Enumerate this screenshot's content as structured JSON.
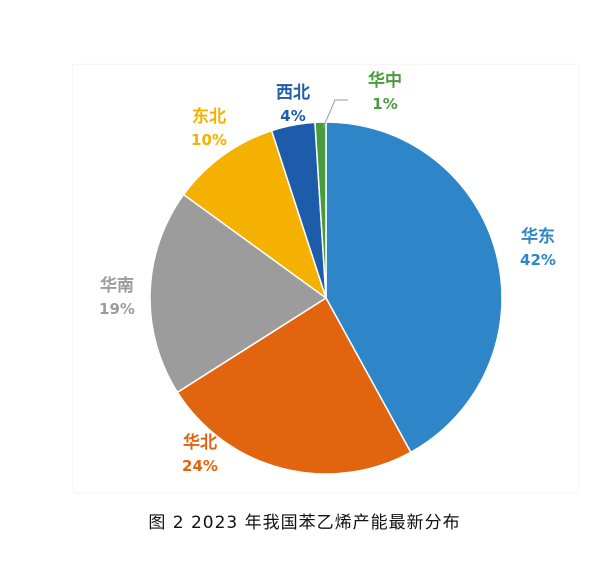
{
  "caption": "图 2  2023 年我国苯乙烯产能最新分布",
  "chart_data": {
    "type": "pie",
    "title": "",
    "start_angle_deg": 0,
    "direction": "clockwise",
    "slices": [
      {
        "label": "华东",
        "value": 42,
        "value_text": "42%",
        "color": "#2E86C8"
      },
      {
        "label": "华北",
        "value": 24,
        "value_text": "24%",
        "color": "#E2640F"
      },
      {
        "label": "华南",
        "value": 19,
        "value_text": "19%",
        "color": "#9C9C9C"
      },
      {
        "label": "东北",
        "value": 10,
        "value_text": "10%",
        "color": "#F4B100"
      },
      {
        "label": "西北",
        "value": 4,
        "value_text": "4%",
        "color": "#1D5CAA"
      },
      {
        "label": "华中",
        "value": 1,
        "value_text": "1%",
        "color": "#4A9A3E"
      }
    ]
  }
}
